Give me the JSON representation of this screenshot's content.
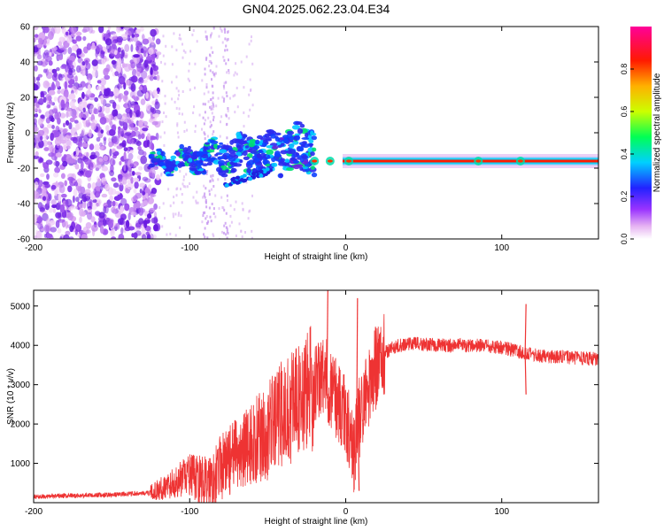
{
  "title": "GN04.2025.062.23.04.E34",
  "colors": {
    "snr_line": "#ee3333",
    "colormap": [
      "#f2ccf5",
      "#c98af0",
      "#8a2be2",
      "#3a2dff",
      "#00c0ff",
      "#00ff66",
      "#e6ff00",
      "#ff8800",
      "#ff0000",
      "#ff00aa"
    ]
  },
  "chart_data": [
    {
      "type": "heatmap",
      "name": "spectrogram",
      "xlabel": "Height of straight line (km)",
      "ylabel": "Frequency (Hz)",
      "xlim": [
        -200,
        162
      ],
      "ylim": [
        -60,
        60
      ],
      "xticks": [
        -200,
        -100,
        0,
        100
      ],
      "yticks": [
        60,
        40,
        20,
        0,
        -20,
        -40,
        -60
      ],
      "xtick_labels": [
        "-200",
        "-100",
        "0",
        "100"
      ],
      "ytick_labels": [
        "60",
        "40",
        "20",
        "0",
        "-20",
        "-40",
        "-60"
      ],
      "colorbar": {
        "label": "Normalized spectral amplitude",
        "range": [
          0,
          1
        ],
        "ticks": [
          0.0,
          0.2,
          0.4,
          0.6,
          0.8
        ],
        "tick_labels": [
          "0.0",
          "0.2",
          "0.4",
          "0.6",
          "0.8"
        ]
      },
      "features": {
        "noise_region_x": [
          -200,
          -120
        ],
        "main_line_freq": -16,
        "main_line_x": [
          -2,
          162
        ],
        "wavy_band_x": [
          -125,
          -20
        ]
      }
    },
    {
      "type": "line",
      "name": "snr",
      "xlabel": "Height of straight line (km)",
      "ylabel": "SNR (10 * v/v)",
      "xlim": [
        -200,
        162
      ],
      "ylim": [
        0,
        5400
      ],
      "xticks": [
        -200,
        -100,
        0,
        100
      ],
      "yticks": [
        1000,
        2000,
        3000,
        4000,
        5000
      ],
      "xtick_labels": [
        "-200",
        "-100",
        "0",
        "100"
      ],
      "ytick_labels": [
        "1000",
        "2000",
        "3000",
        "4000",
        "5000"
      ],
      "trend": {
        "x": [
          -200,
          -150,
          -125,
          -110,
          -100,
          -90,
          -80,
          -70,
          -60,
          -50,
          -40,
          -30,
          -20,
          -15,
          -10,
          -5,
          0,
          5,
          10,
          15,
          20,
          25,
          30,
          40,
          60,
          80,
          100,
          110,
          120,
          140,
          162
        ],
        "y": [
          150,
          200,
          250,
          500,
          700,
          500,
          900,
          1200,
          1500,
          1800,
          2300,
          2600,
          3000,
          3200,
          3000,
          2600,
          2200,
          1300,
          2400,
          3000,
          3500,
          3800,
          3950,
          4050,
          4000,
          4000,
          3950,
          3850,
          3750,
          3700,
          3650
        ]
      },
      "spikes": [
        {
          "x": -12,
          "y": 5500
        },
        {
          "x": 7,
          "y": 5200
        },
        {
          "x": 8,
          "y": 300
        },
        {
          "x": 115,
          "y": 5050
        },
        {
          "x": 115,
          "y": 2750
        }
      ]
    }
  ]
}
